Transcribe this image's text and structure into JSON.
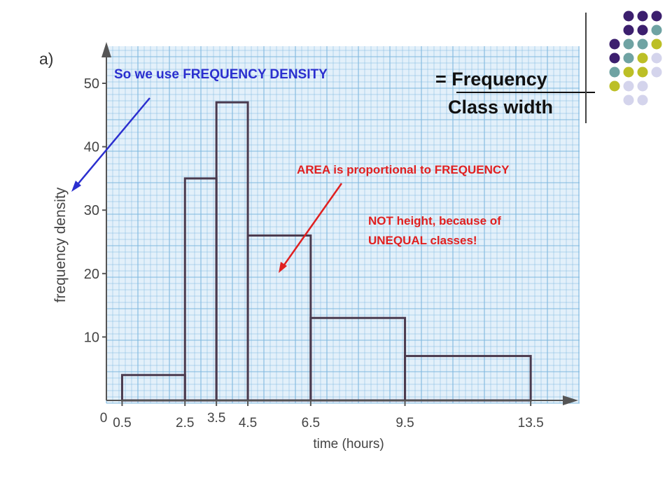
{
  "chart_data": {
    "type": "histogram",
    "xlabel": "time (hours)",
    "ylabel": "frequency density",
    "x_ticks": [
      "0",
      "0.5",
      "2.5",
      "3.5",
      "4.5",
      "6.5",
      "9.5",
      "13.5"
    ],
    "y_ticks": [
      "10",
      "20",
      "30",
      "40",
      "50"
    ],
    "xlim": [
      0,
      15
    ],
    "ylim": [
      0,
      55
    ],
    "grid": true,
    "bars": [
      {
        "x0": 0.5,
        "x1": 2.5,
        "value": 4
      },
      {
        "x0": 2.5,
        "x1": 3.5,
        "value": 35
      },
      {
        "x0": 3.5,
        "x1": 4.5,
        "value": 47
      },
      {
        "x0": 4.5,
        "x1": 6.5,
        "value": 26
      },
      {
        "x0": 6.5,
        "x1": 9.5,
        "value": 13
      },
      {
        "x0": 9.5,
        "x1": 13.5,
        "value": 7
      }
    ],
    "part_label": "a)"
  },
  "annotations": {
    "density_note": "So we use FREQUENCY DENSITY",
    "area_note": "AREA is proportional to FREQUENCY",
    "height_note_line1": "NOT height, because of",
    "height_note_line2": "UNEQUAL classes!"
  },
  "formula": {
    "numerator": "= Frequency",
    "denominator": "Class width"
  },
  "colors": {
    "grid_paper": "#e3f0fa",
    "grid_line": "#7fb8df",
    "bar_outline": "#4a3a4e",
    "axis": "#555555",
    "blue_note": "#2b2fcf",
    "red_note": "#e02020",
    "dot_purple": "#3c1f6e",
    "dot_teal": "#6fa3a3",
    "dot_olive": "#bcbf26",
    "dot_lilac": "#d4d4ec"
  },
  "dot_pattern": [
    [
      "",
      "",
      "purple",
      "purple",
      "purple"
    ],
    [
      "",
      "",
      "purple",
      "purple",
      "teal"
    ],
    [
      "",
      "purple",
      "teal",
      "teal",
      "olive"
    ],
    [
      "",
      "purple",
      "teal",
      "olive",
      "lilac"
    ],
    [
      "",
      "teal",
      "olive",
      "olive",
      "lilac"
    ],
    [
      "",
      "olive",
      "lilac",
      "lilac",
      ""
    ],
    [
      "",
      "",
      "lilac",
      "lilac",
      ""
    ]
  ]
}
